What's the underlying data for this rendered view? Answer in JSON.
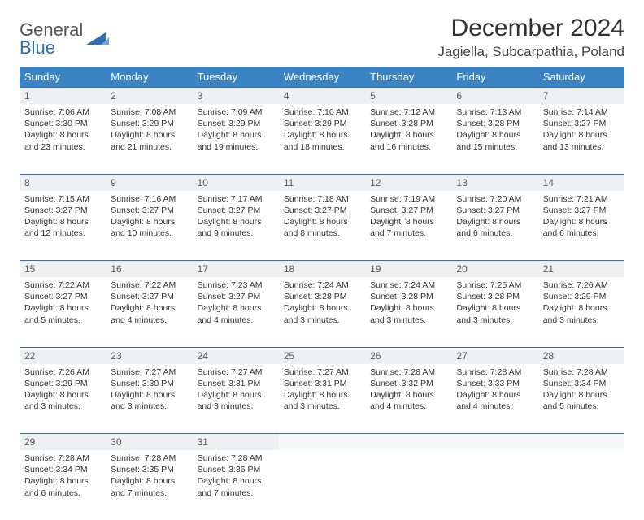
{
  "logo": {
    "word1": "General",
    "word2": "Blue"
  },
  "title": "December 2024",
  "location": "Jagiella, Subcarpathia, Poland",
  "colors": {
    "header_bg": "#3a84c4",
    "header_fg": "#ffffff",
    "rule": "#2f6fb0",
    "daynum_bg": "#eef0f1",
    "logo_gray": "#555555",
    "logo_blue": "#2f6fb0"
  },
  "weekdays": [
    "Sunday",
    "Monday",
    "Tuesday",
    "Wednesday",
    "Thursday",
    "Friday",
    "Saturday"
  ],
  "weeks": [
    [
      {
        "n": "1",
        "sr": "7:06 AM",
        "ss": "3:30 PM",
        "dl": "8 hours and 23 minutes."
      },
      {
        "n": "2",
        "sr": "7:08 AM",
        "ss": "3:29 PM",
        "dl": "8 hours and 21 minutes."
      },
      {
        "n": "3",
        "sr": "7:09 AM",
        "ss": "3:29 PM",
        "dl": "8 hours and 19 minutes."
      },
      {
        "n": "4",
        "sr": "7:10 AM",
        "ss": "3:29 PM",
        "dl": "8 hours and 18 minutes."
      },
      {
        "n": "5",
        "sr": "7:12 AM",
        "ss": "3:28 PM",
        "dl": "8 hours and 16 minutes."
      },
      {
        "n": "6",
        "sr": "7:13 AM",
        "ss": "3:28 PM",
        "dl": "8 hours and 15 minutes."
      },
      {
        "n": "7",
        "sr": "7:14 AM",
        "ss": "3:27 PM",
        "dl": "8 hours and 13 minutes."
      }
    ],
    [
      {
        "n": "8",
        "sr": "7:15 AM",
        "ss": "3:27 PM",
        "dl": "8 hours and 12 minutes."
      },
      {
        "n": "9",
        "sr": "7:16 AM",
        "ss": "3:27 PM",
        "dl": "8 hours and 10 minutes."
      },
      {
        "n": "10",
        "sr": "7:17 AM",
        "ss": "3:27 PM",
        "dl": "8 hours and 9 minutes."
      },
      {
        "n": "11",
        "sr": "7:18 AM",
        "ss": "3:27 PM",
        "dl": "8 hours and 8 minutes."
      },
      {
        "n": "12",
        "sr": "7:19 AM",
        "ss": "3:27 PM",
        "dl": "8 hours and 7 minutes."
      },
      {
        "n": "13",
        "sr": "7:20 AM",
        "ss": "3:27 PM",
        "dl": "8 hours and 6 minutes."
      },
      {
        "n": "14",
        "sr": "7:21 AM",
        "ss": "3:27 PM",
        "dl": "8 hours and 6 minutes."
      }
    ],
    [
      {
        "n": "15",
        "sr": "7:22 AM",
        "ss": "3:27 PM",
        "dl": "8 hours and 5 minutes."
      },
      {
        "n": "16",
        "sr": "7:22 AM",
        "ss": "3:27 PM",
        "dl": "8 hours and 4 minutes."
      },
      {
        "n": "17",
        "sr": "7:23 AM",
        "ss": "3:27 PM",
        "dl": "8 hours and 4 minutes."
      },
      {
        "n": "18",
        "sr": "7:24 AM",
        "ss": "3:28 PM",
        "dl": "8 hours and 3 minutes."
      },
      {
        "n": "19",
        "sr": "7:24 AM",
        "ss": "3:28 PM",
        "dl": "8 hours and 3 minutes."
      },
      {
        "n": "20",
        "sr": "7:25 AM",
        "ss": "3:28 PM",
        "dl": "8 hours and 3 minutes."
      },
      {
        "n": "21",
        "sr": "7:26 AM",
        "ss": "3:29 PM",
        "dl": "8 hours and 3 minutes."
      }
    ],
    [
      {
        "n": "22",
        "sr": "7:26 AM",
        "ss": "3:29 PM",
        "dl": "8 hours and 3 minutes."
      },
      {
        "n": "23",
        "sr": "7:27 AM",
        "ss": "3:30 PM",
        "dl": "8 hours and 3 minutes."
      },
      {
        "n": "24",
        "sr": "7:27 AM",
        "ss": "3:31 PM",
        "dl": "8 hours and 3 minutes."
      },
      {
        "n": "25",
        "sr": "7:27 AM",
        "ss": "3:31 PM",
        "dl": "8 hours and 3 minutes."
      },
      {
        "n": "26",
        "sr": "7:28 AM",
        "ss": "3:32 PM",
        "dl": "8 hours and 4 minutes."
      },
      {
        "n": "27",
        "sr": "7:28 AM",
        "ss": "3:33 PM",
        "dl": "8 hours and 4 minutes."
      },
      {
        "n": "28",
        "sr": "7:28 AM",
        "ss": "3:34 PM",
        "dl": "8 hours and 5 minutes."
      }
    ],
    [
      {
        "n": "29",
        "sr": "7:28 AM",
        "ss": "3:34 PM",
        "dl": "8 hours and 6 minutes."
      },
      {
        "n": "30",
        "sr": "7:28 AM",
        "ss": "3:35 PM",
        "dl": "8 hours and 7 minutes."
      },
      {
        "n": "31",
        "sr": "7:28 AM",
        "ss": "3:36 PM",
        "dl": "8 hours and 7 minutes."
      },
      null,
      null,
      null,
      null
    ]
  ],
  "labels": {
    "sunrise": "Sunrise:",
    "sunset": "Sunset:",
    "daylight": "Daylight:"
  }
}
